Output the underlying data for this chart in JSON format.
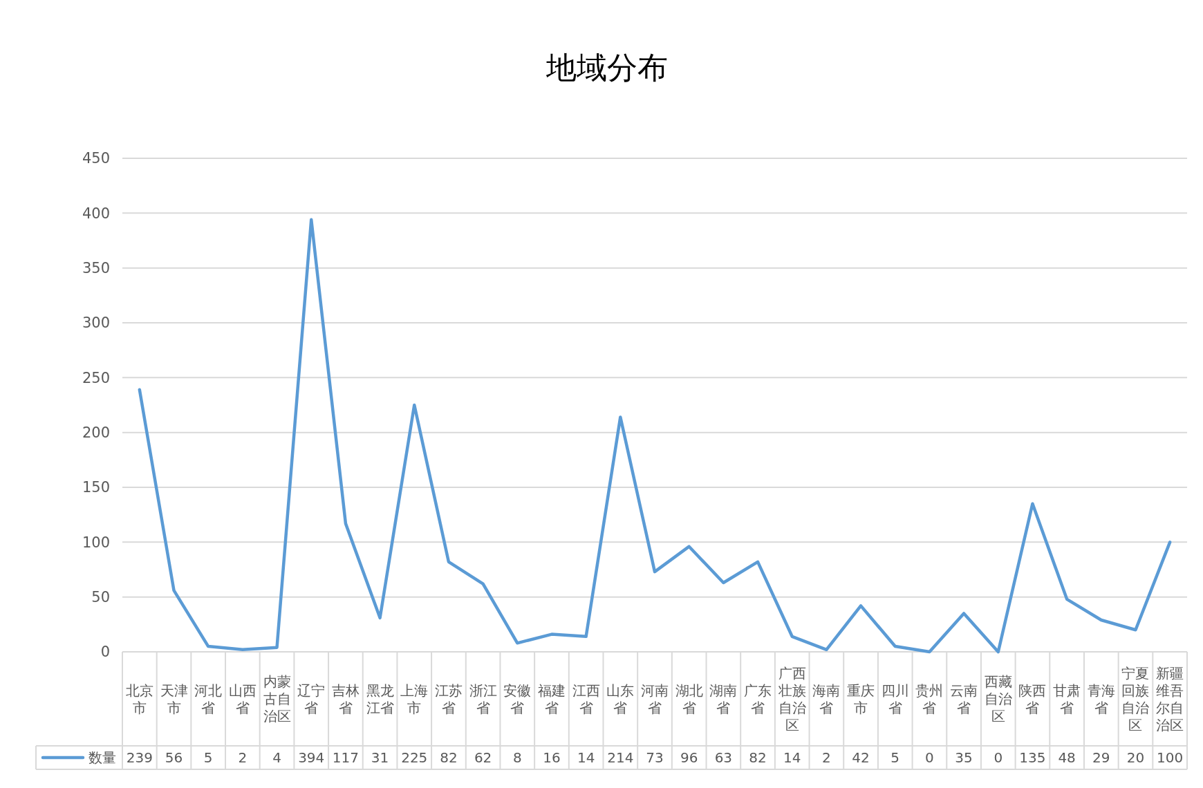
{
  "chart_data": {
    "type": "line",
    "title": "地域分布",
    "categories": [
      "北京市",
      "天津市",
      "河北省",
      "山西省",
      "内蒙古自治区",
      "辽宁省",
      "吉林省",
      "黑龙江省",
      "上海市",
      "江苏省",
      "浙江省",
      "安徽省",
      "福建省",
      "江西省",
      "山东省",
      "河南省",
      "湖北省",
      "湖南省",
      "广东省",
      "广西壮族自治区",
      "海南省",
      "重庆市",
      "四川省",
      "贵州省",
      "云南省",
      "西藏自治区",
      "陕西省",
      "甘肃省",
      "青海省",
      "宁夏回族自治区",
      "新疆维吾尔自治区"
    ],
    "series": [
      {
        "name": "数量",
        "color": "#5b9bd5",
        "values": [
          239,
          56,
          5,
          2,
          4,
          394,
          117,
          31,
          225,
          82,
          62,
          8,
          16,
          14,
          214,
          73,
          96,
          63,
          82,
          14,
          2,
          42,
          5,
          0,
          35,
          0,
          135,
          48,
          29,
          20,
          100
        ]
      }
    ],
    "ylim": [
      0,
      450
    ],
    "yticks": [
      0,
      50,
      100,
      150,
      200,
      250,
      300,
      350,
      400,
      450
    ],
    "grid": "y",
    "legend": "bottom",
    "data_labels": true
  }
}
